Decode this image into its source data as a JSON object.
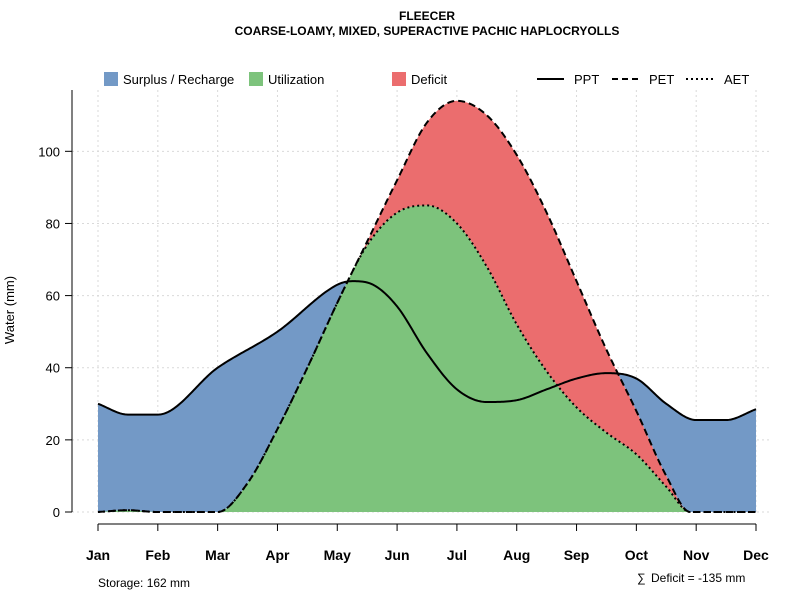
{
  "chart_data": {
    "type": "area",
    "title": "FLEECER",
    "subtitle": "COARSE-LOAMY, MIXED, SUPERACTIVE PACHIC HAPLOCRYOLLS",
    "ylabel": "Water (mm)",
    "xlabel": "",
    "ylim": [
      0,
      117
    ],
    "yticks": [
      0,
      20,
      40,
      60,
      80,
      100
    ],
    "categories": [
      "Jan",
      "Feb",
      "Mar",
      "Apr",
      "May",
      "Jun",
      "Jul",
      "Aug",
      "Sep",
      "Oct",
      "Nov",
      "Dec"
    ],
    "series": [
      {
        "name": "PPT",
        "style": "solid",
        "x": [
          1,
          1.5,
          2,
          3,
          4,
          5,
          5.25,
          5.6,
          6,
          6.5,
          7,
          7.5,
          8,
          8.5,
          9,
          9.5,
          10,
          10.5,
          11,
          11.5,
          12
        ],
        "values": [
          30,
          27,
          27,
          40,
          50,
          63,
          64,
          63,
          57,
          44,
          34,
          30.5,
          31,
          34,
          37,
          38.5,
          37,
          30,
          25.5,
          25.5,
          28.5
        ]
      },
      {
        "name": "PET",
        "style": "dashed",
        "x": [
          1,
          1.5,
          2,
          2.5,
          3,
          3.5,
          4,
          4.5,
          5,
          5.5,
          6,
          6.5,
          7,
          7.5,
          8,
          8.5,
          9,
          9.5,
          10,
          10.5,
          10.9,
          11.5,
          12
        ],
        "values": [
          0,
          0.5,
          0,
          0,
          0,
          8,
          23,
          40,
          58,
          75,
          92,
          108,
          114,
          110,
          99,
          83,
          64,
          45,
          28,
          10,
          0,
          0,
          0
        ]
      },
      {
        "name": "AET",
        "style": "dotted",
        "x": [
          1,
          1.5,
          2,
          2.5,
          3,
          3.5,
          4,
          4.5,
          5,
          5.5,
          6,
          6.5,
          7,
          7.5,
          8,
          8.5,
          9,
          9.5,
          10,
          10.5,
          10.9,
          11.5,
          12
        ],
        "values": [
          0,
          0.5,
          0,
          0,
          0,
          8,
          23,
          40,
          58,
          74,
          83,
          85,
          80,
          68,
          52,
          39,
          29,
          22,
          16,
          7,
          0,
          0,
          0
        ]
      }
    ],
    "regions": [
      {
        "name": "Surplus / Recharge",
        "color": "#7399c6"
      },
      {
        "name": "Utilization",
        "color": "#7dc37c"
      },
      {
        "name": "Deficit",
        "color": "#eb6d6e"
      }
    ],
    "legend": {
      "fills": [
        "Surplus / Recharge",
        "Utilization",
        "Deficit"
      ],
      "lines": [
        "PPT",
        "PET",
        "AET"
      ],
      "placement": "top"
    },
    "footnotes": {
      "storage": "Storage: 162 mm",
      "deficit_symbol": "∑",
      "deficit": "Deficit = -135 mm"
    },
    "grid": true
  }
}
